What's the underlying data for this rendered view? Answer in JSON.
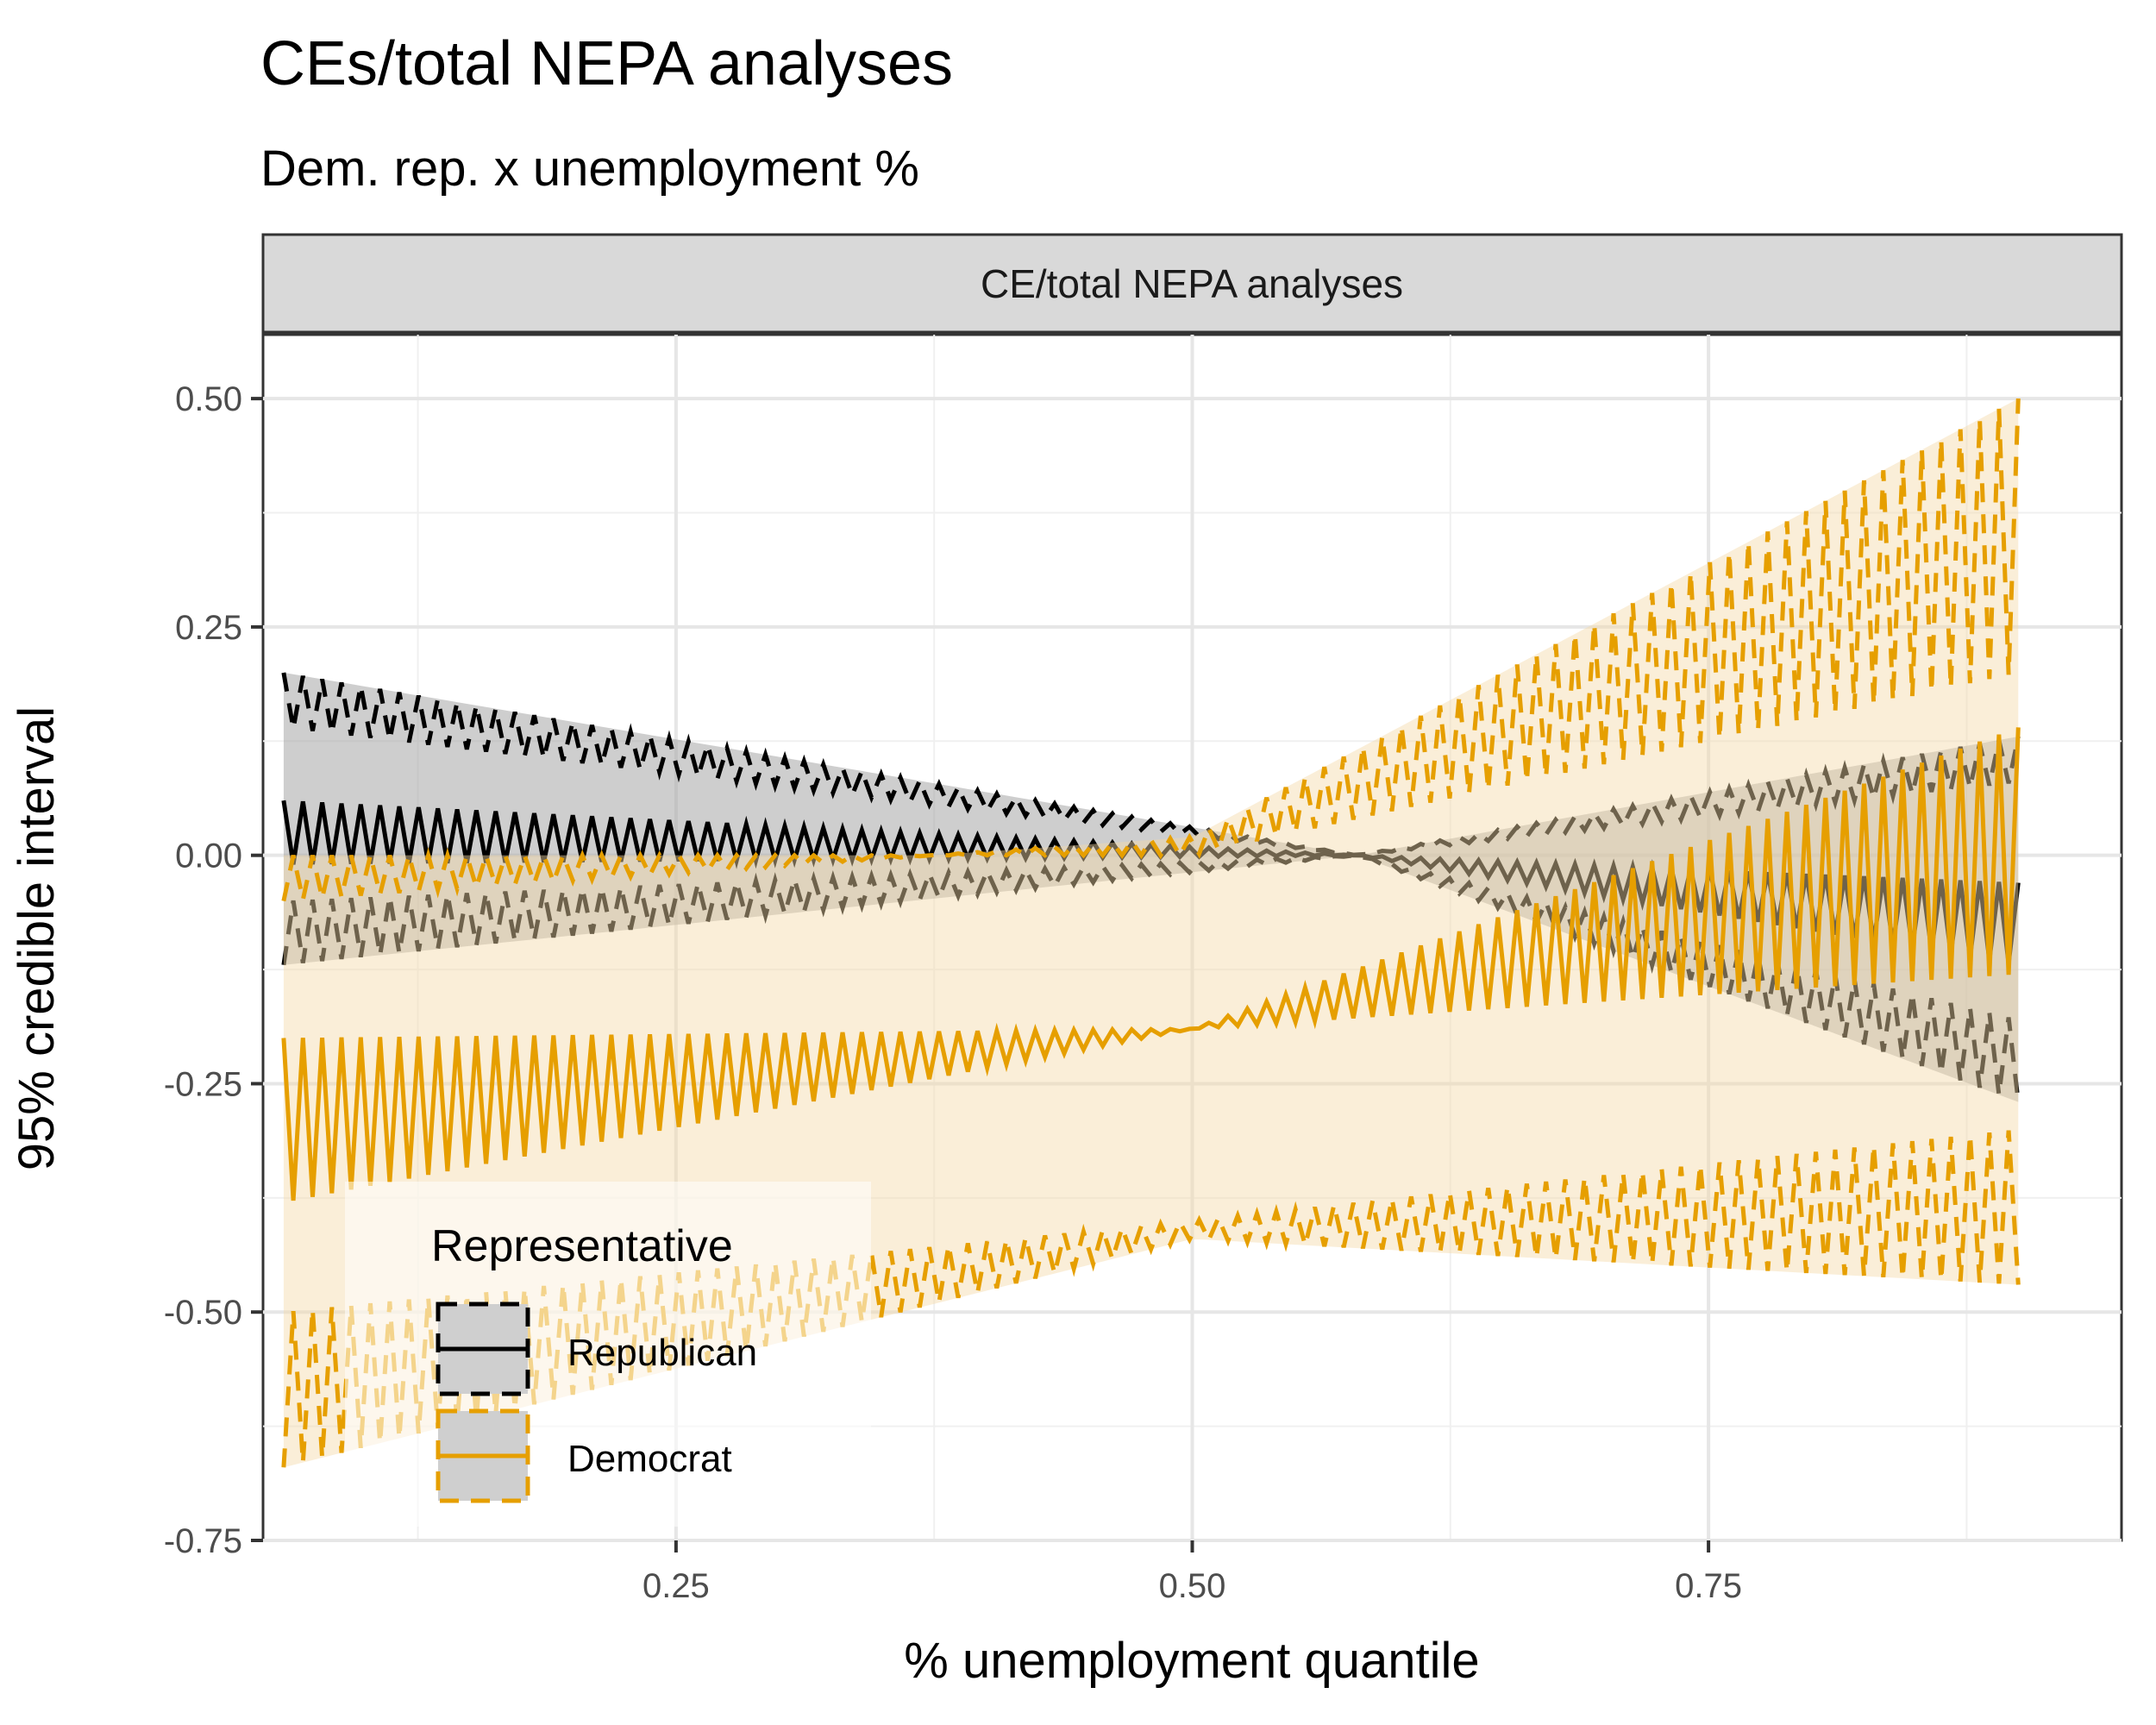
{
  "chart_data": {
    "type": "line",
    "title": "CEs/total NEPA analyses",
    "subtitle": "Dem. rep. x unemployment %",
    "facet_label": "CE/total NEPA analyses",
    "xlabel": "% unemployment quantile",
    "ylabel": "95% credible interval",
    "xlim": [
      0.05,
      0.95
    ],
    "ylim": [
      -0.75,
      0.57
    ],
    "x_ticks": [
      {
        "value": 0.25,
        "label": "0.25"
      },
      {
        "value": 0.5,
        "label": "0.50"
      },
      {
        "value": 0.75,
        "label": "0.75"
      }
    ],
    "y_ticks": [
      {
        "value": 0.5,
        "label": "0.50"
      },
      {
        "value": 0.25,
        "label": "0.25"
      },
      {
        "value": 0.0,
        "label": "0.00"
      },
      {
        "value": -0.25,
        "label": "-0.25"
      },
      {
        "value": -0.5,
        "label": "-0.50"
      },
      {
        "value": -0.75,
        "label": "-0.75"
      }
    ],
    "grid": true,
    "x_range": [
      0.06,
      0.9
    ],
    "n_points": 181,
    "legend": {
      "title": "Representative",
      "position": "bottom-left",
      "entries": [
        "Republican",
        "Democrat"
      ]
    },
    "series": [
      {
        "name": "Republican",
        "color": "#000000",
        "fill": "#a6a6a6",
        "mean": {
          "x": [
            0.06,
            0.58,
            0.9
          ],
          "y": [
            0.06,
            0.0,
            -0.03
          ]
        },
        "mean_alt": {
          "x": [
            0.06,
            0.58,
            0.9
          ],
          "y": [
            -0.01,
            0.0,
            -0.12
          ]
        },
        "upper": {
          "x": [
            0.06,
            0.58,
            0.9
          ],
          "y": [
            0.2,
            0.0,
            0.13
          ]
        },
        "upper_alt": {
          "x": [
            0.06,
            0.58,
            0.9
          ],
          "y": [
            0.14,
            0.0,
            0.08
          ]
        },
        "lower": {
          "x": [
            0.06,
            0.58,
            0.9
          ],
          "y": [
            -0.12,
            0.0,
            -0.27
          ]
        },
        "lower_alt": {
          "x": [
            0.06,
            0.58,
            0.9
          ],
          "y": [
            -0.05,
            0.0,
            -0.18
          ]
        }
      },
      {
        "name": "Democrat",
        "color": "#e69f00",
        "fill": "#f3d9a9",
        "mean": {
          "x": [
            0.06,
            0.5,
            0.9
          ],
          "y": [
            -0.2,
            -0.19,
            0.14
          ]
        },
        "mean_alt": {
          "x": [
            0.06,
            0.5,
            0.9
          ],
          "y": [
            -0.38,
            -0.19,
            -0.13
          ]
        },
        "upper": {
          "x": [
            0.06,
            0.5,
            0.9
          ],
          "y": [
            -0.05,
            0.02,
            0.5
          ]
        },
        "upper_alt": {
          "x": [
            0.06,
            0.5,
            0.9
          ],
          "y": [
            0.0,
            0.0,
            0.2
          ]
        },
        "lower": {
          "x": [
            0.06,
            0.5,
            0.9
          ],
          "y": [
            -0.67,
            -0.42,
            -0.47
          ]
        },
        "lower_alt": {
          "x": [
            0.06,
            0.5,
            0.9
          ],
          "y": [
            -0.5,
            -0.4,
            -0.3
          ]
        }
      }
    ]
  }
}
